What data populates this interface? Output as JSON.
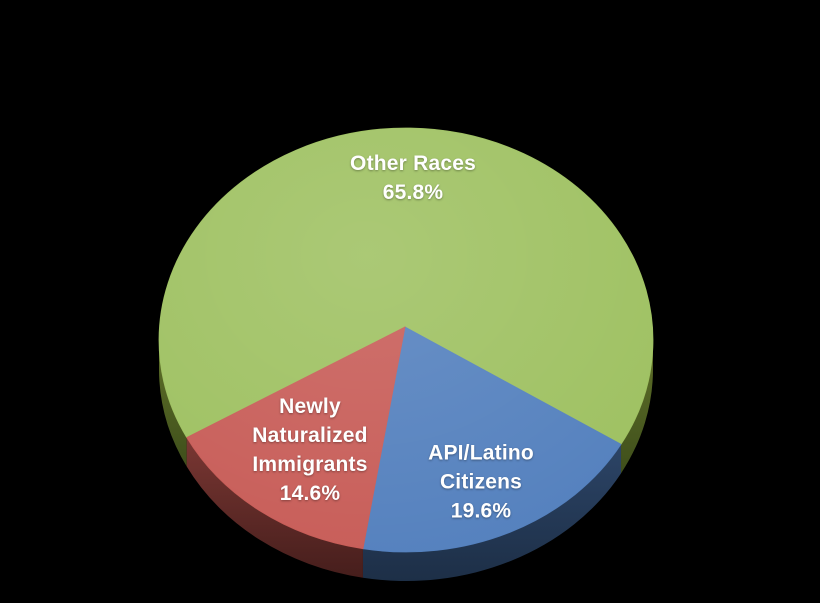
{
  "background_color": "#000000",
  "chart_data": {
    "type": "pie",
    "style": "3d-pie",
    "title": "",
    "legend": "none",
    "total": 100.0,
    "direction": "clockwise",
    "start_angle_clockwise_from_top_deg": 242.6,
    "label_color": "#FFFFFF",
    "slices": [
      {
        "label": "Other Races",
        "value": 65.8,
        "pct_label": "65.8%",
        "label_lines": [
          "Other Races"
        ],
        "color": "#9DC05F",
        "side_top": "#5F7029",
        "side_bottom": "#3F4F1B"
      },
      {
        "label": "API/Latino Citizens",
        "value": 19.6,
        "pct_label": "19.6%",
        "label_lines": [
          "API/Latino",
          "Citizens"
        ],
        "color": "#527FBD",
        "side_top": "#2C4466",
        "side_bottom": "#1D2F47"
      },
      {
        "label": "Newly Naturalized Immigrants",
        "value": 14.6,
        "pct_label": "14.6%",
        "label_lines": [
          "Newly",
          "Naturalized",
          "Immigrants"
        ],
        "color": "#C75B56",
        "side_top": "#7A3733",
        "side_bottom": "#461E1C"
      }
    ]
  }
}
